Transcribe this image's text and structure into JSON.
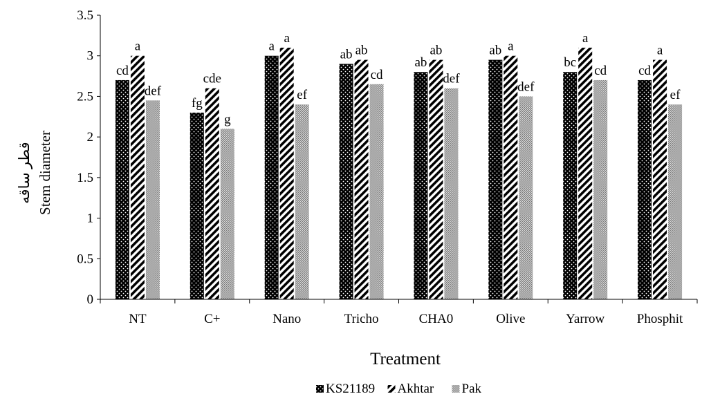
{
  "chart_data": {
    "type": "bar",
    "xlabel": "Treatment",
    "ylabel_fa": "قطر ساقه",
    "ylabel": "Stem diameter",
    "ylim": [
      0,
      3.5
    ],
    "yticks": [
      "0",
      "0.5",
      "1",
      "1.5",
      "2",
      "2.5",
      "3",
      "3.5"
    ],
    "categories": [
      "NT",
      "C+",
      "Nano",
      "Tricho",
      "CHA0",
      "Olive",
      "Yarrow",
      "Phosphit"
    ],
    "series": [
      {
        "name": "KS21189",
        "pattern": "dots",
        "values": [
          2.7,
          2.3,
          3.0,
          2.9,
          2.8,
          2.95,
          2.8,
          2.7
        ],
        "labels": [
          "cd",
          "fg",
          "a",
          "ab",
          "ab",
          "ab",
          "bc",
          "cd"
        ]
      },
      {
        "name": "Akhtar",
        "pattern": "diagonal",
        "values": [
          3.0,
          2.6,
          3.1,
          2.95,
          2.95,
          3.0,
          3.1,
          2.95
        ],
        "labels": [
          "a",
          "cde",
          "a",
          "ab",
          "ab",
          "a",
          "a",
          "a"
        ]
      },
      {
        "name": "Pak",
        "pattern": "checker",
        "values": [
          2.45,
          2.1,
          2.4,
          2.65,
          2.6,
          2.5,
          2.7,
          2.4
        ],
        "labels": [
          "def",
          "g",
          "ef",
          "cd",
          "def",
          "def",
          "cd",
          "ef"
        ]
      }
    ],
    "legend_position": "bottom",
    "grid": false
  }
}
